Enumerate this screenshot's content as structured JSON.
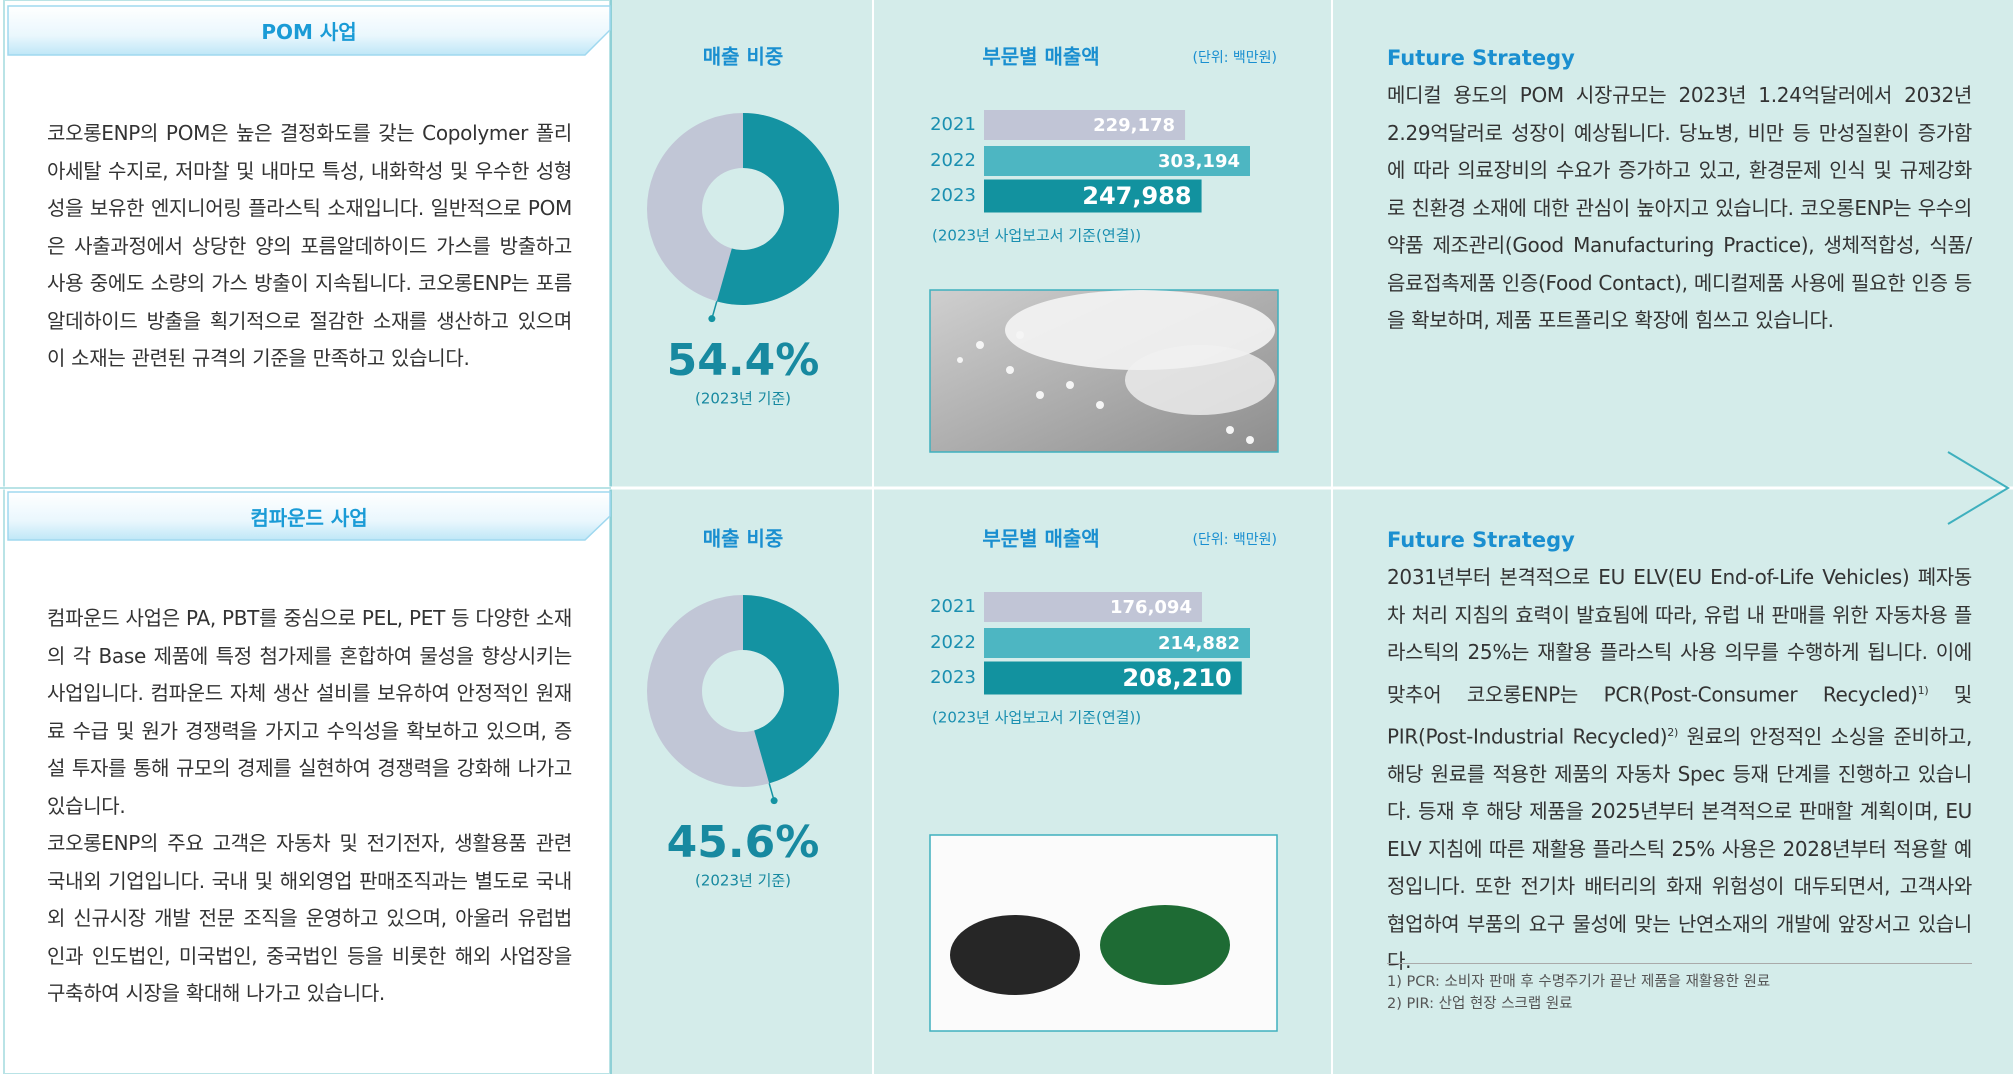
{
  "sections": [
    {
      "title": "POM 사업",
      "paragraphs": [
        "코오롱ENP의 POM은 높은 결정화도를 갖는 Copolymer 폴리아세탈 수지로, 저마찰 및 내마모 특성, 내화학성 및 우수한 성형성을 보유한 엔지니어링 플라스틱 소재입니다. 일반적으로 POM은 사출과정에서 상당한 양의 포름알데하이드 가스를 방출하고 사용 중에도 소량의 가스 방출이 지속됩니다. 코오롱ENP는 포름알데하이드 방출을 획기적으로 절감한 소재를 생산하고 있으며 이 소재는 관련된 규격의 기준을 만족하고 있습니다."
      ],
      "share_chart": {
        "type": "pie",
        "title": "매출 비중",
        "value": 54.4,
        "value_label": "54.4%",
        "note": "(2023년 기준)",
        "color": "#1493a2",
        "rest_color": "#c1c6d6"
      },
      "sales_chart": {
        "type": "bar",
        "title": "부문별 매출액",
        "unit": "(단위: 백만원)",
        "categories": [
          "2021",
          "2022",
          "2023"
        ],
        "values": [
          229178,
          303194,
          247988
        ],
        "value_labels": [
          "229,178",
          "303,194",
          "247,988"
        ],
        "colors": [
          "#c1c5d6",
          "#4db6c2",
          "#12929f"
        ],
        "source": "(2023년 사업보고서 기준(연결))"
      },
      "strategy": {
        "title": "Future Strategy",
        "text": [
          "메디컬 용도의 POM 시장규모는 2023년 1.24억달러에서 2032년 2.29억달러로 성장이 예상됩니다. 당뇨병, 비만 등 만성질환이 증가함에 따라 의료장비의 수요가 증가하고 있고, 환경문제 인식 및 규제강화로 친환경 소재에 대한 관심이 높아지고 있습니다. 코오롱ENP는 우수의약품 제조관리(Good Manufacturing Practice), 생체적합성, 식품/음료접촉제품 인증(Food Contact), 메디컬제품 사용에 필요한 인증 등을 확보하며, 제품 포트폴리오 확장에 힘쓰고 있습니다."
        ]
      }
    },
    {
      "title": "컴파운드 사업",
      "paragraphs": [
        "컴파운드 사업은 PA, PBT를 중심으로 PEL, PET 등 다양한 소재의 각 Base 제품에 특정 첨가제를 혼합하여 물성을 향상시키는 사업입니다. 컴파운드 자체 생산 설비를 보유하여 안정적인 원재료 수급 및 원가 경쟁력을 가지고 수익성을 확보하고 있으며, 증설 투자를 통해 규모의 경제를 실현하여 경쟁력을 강화해 나가고 있습니다.",
        "코오롱ENP의 주요 고객은 자동차 및 전기전자, 생활용품 관련 국내외 기업입니다. 국내 및 해외영업 판매조직과는 별도로 국내외 신규시장 개발 전문 조직을 운영하고 있으며, 아울러 유럽법인과 인도법인, 미국법인, 중국법인 등을 비롯한 해외 사업장을 구축하여 시장을 확대해 나가고 있습니다."
      ],
      "share_chart": {
        "type": "pie",
        "title": "매출 비중",
        "value": 45.6,
        "value_label": "45.6%",
        "note": "(2023년 기준)",
        "color": "#1493a2",
        "rest_color": "#c1c6d6"
      },
      "sales_chart": {
        "type": "bar",
        "title": "부문별 매출액",
        "unit": "(단위: 백만원)",
        "categories": [
          "2021",
          "2022",
          "2023"
        ],
        "values": [
          176094,
          214882,
          208210
        ],
        "value_labels": [
          "176,094",
          "214,882",
          "208,210"
        ],
        "colors": [
          "#c1c5d6",
          "#4db6c2",
          "#12929f"
        ],
        "source": "(2023년 사업보고서 기준(연결))"
      },
      "strategy": {
        "title": "Future Strategy",
        "text": [
          "2031년부터 본격적으로 EU ELV(EU End-of-Life Vehicles) 폐자동차 처리 지침의 효력이 발효됨에 따라, 유럽 내 판매를 위한 자동차용 플라스틱의 25%는 재활용 플라스틱 사용 의무를 수행하게 됩니다. 이에 맞추어 코오롱ENP는 PCR(Post-Consumer Recycled)",
          {
            "sup": "1)"
          },
          " 및 PIR(Post-Industrial Recycled)",
          {
            "sup": "2)"
          },
          " 원료의 안정적인 소싱을 준비하고, 해당 원료를 적용한 제품의 자동차 Spec 등재 단계를 진행하고 있습니다. 등재 후 해당 제품을 2025년부터 본격적으로 판매할 계획이며, EU ELV 지침에 따른 재활용 플라스틱 25% 사용은 2028년부터 적용할 예정입니다. 또한 전기차 배터리의 화재 위험성이 대두되면서, 고객사와 협업하여 부품의 요구 물성에 맞는 난연소재의 개발에 앞장서고 있습니다."
        ],
        "footnotes": [
          "1) PCR: 소비자 판매 후 수명주기가 끝난 제품을 재활용한 원료",
          "2) PIR: 산업 현장 스크랩 원료"
        ]
      }
    }
  ]
}
